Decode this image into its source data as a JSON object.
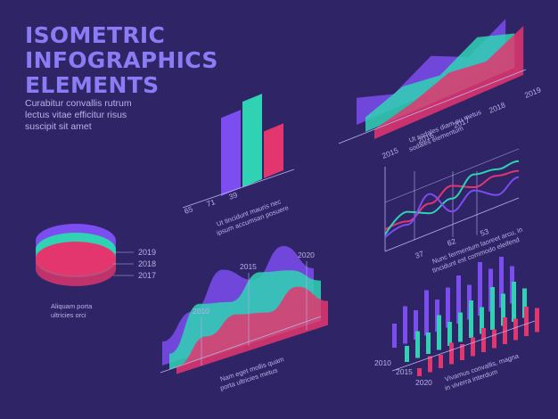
{
  "title": {
    "line1": "ISOMETRIC",
    "line2": "INFOGRAPHICS",
    "line3": "ELEMENTS"
  },
  "subtitle": {
    "line1": "Curabitur convallis rutrum",
    "line2": "lectus vitae efficitur risus",
    "line3": "suscipit sit amet"
  },
  "colors": {
    "background": "#2e2466",
    "violet": "#7c4df0",
    "teal": "#2fd3b4",
    "magenta": "#e4366e",
    "axis": "#b9b2e8",
    "text": "#b9b2e8"
  },
  "chart_data": [
    {
      "id": "mountains",
      "type": "area",
      "x": [
        "2015",
        "2016",
        "2017",
        "2018",
        "2019"
      ],
      "series": [
        {
          "color": "#7c4df0",
          "values": [
            55,
            30,
            75,
            40,
            85
          ]
        },
        {
          "color": "#2fd3b4",
          "values": [
            30,
            60,
            50,
            95,
            70
          ]
        },
        {
          "color": "#e4366e",
          "values": [
            20,
            40,
            70,
            60,
            100
          ]
        }
      ],
      "caption": [
        "Ut sodales diam eu metus",
        "sodales elementum"
      ]
    },
    {
      "id": "bars",
      "type": "bar",
      "categories": [
        "65",
        "71",
        "39"
      ],
      "values": [
        65,
        71,
        39
      ],
      "colors": [
        "#7c4df0",
        "#2fd3b4",
        "#e4366e"
      ],
      "caption": [
        "Ut tincidunt mauris nec",
        "ipsum accumsan posuere"
      ]
    },
    {
      "id": "lines",
      "type": "line",
      "x_ticks": [
        "37",
        "62",
        "53"
      ],
      "series": [
        {
          "color": "#e4366e",
          "values": [
            20,
            30,
            55,
            80,
            75,
            90,
            95
          ]
        },
        {
          "color": "#2fd3b4",
          "values": [
            12,
            45,
            40,
            60,
            95,
            100,
            110
          ]
        },
        {
          "color": "#7c4df0",
          "values": [
            8,
            25,
            70,
            40,
            70,
            60,
            85
          ]
        }
      ],
      "caption": [
        "Nunc fermentum laoreet arcu, in",
        "tincidunt est commodo eleifend"
      ]
    },
    {
      "id": "discs",
      "type": "pie",
      "labels": [
        "2019",
        "2018",
        "2017"
      ],
      "colors": [
        "#e4366e",
        "#2fd3b4",
        "#7c4df0"
      ],
      "caption": [
        "Aliquam porta",
        "ultricies orci"
      ]
    },
    {
      "id": "waves",
      "type": "area",
      "x_ticks": [
        "2010",
        "2015",
        "2020"
      ],
      "series": [
        {
          "color": "#7c4df0",
          "values": [
            30,
            55,
            95,
            70,
            100,
            60
          ]
        },
        {
          "color": "#2fd3b4",
          "values": [
            20,
            70,
            60,
            85,
            75,
            50
          ]
        },
        {
          "color": "#e4366e",
          "values": [
            10,
            35,
            50,
            40,
            60,
            30
          ]
        }
      ],
      "caption": [
        "Nam eget mollis quam",
        "porta ultricies metus"
      ]
    },
    {
      "id": "histogram",
      "type": "bar",
      "x_ticks": [
        "2010",
        "2015",
        "2020"
      ],
      "series": [
        {
          "color": "#7c4df0",
          "values": [
            45,
            70,
            55,
            85,
            60,
            75,
            90,
            65,
            100,
            80,
            95,
            70
          ]
        },
        {
          "color": "#2fd3b4",
          "values": [
            30,
            50,
            40,
            65,
            45,
            55,
            70,
            50,
            80,
            60,
            75,
            55
          ]
        },
        {
          "color": "#e4366e",
          "values": [
            15,
            30,
            25,
            40,
            30,
            35,
            45,
            35,
            50,
            40,
            55,
            45
          ]
        }
      ],
      "caption": [
        "Vivamus convallis, magna",
        "in viverra interdum"
      ]
    }
  ]
}
